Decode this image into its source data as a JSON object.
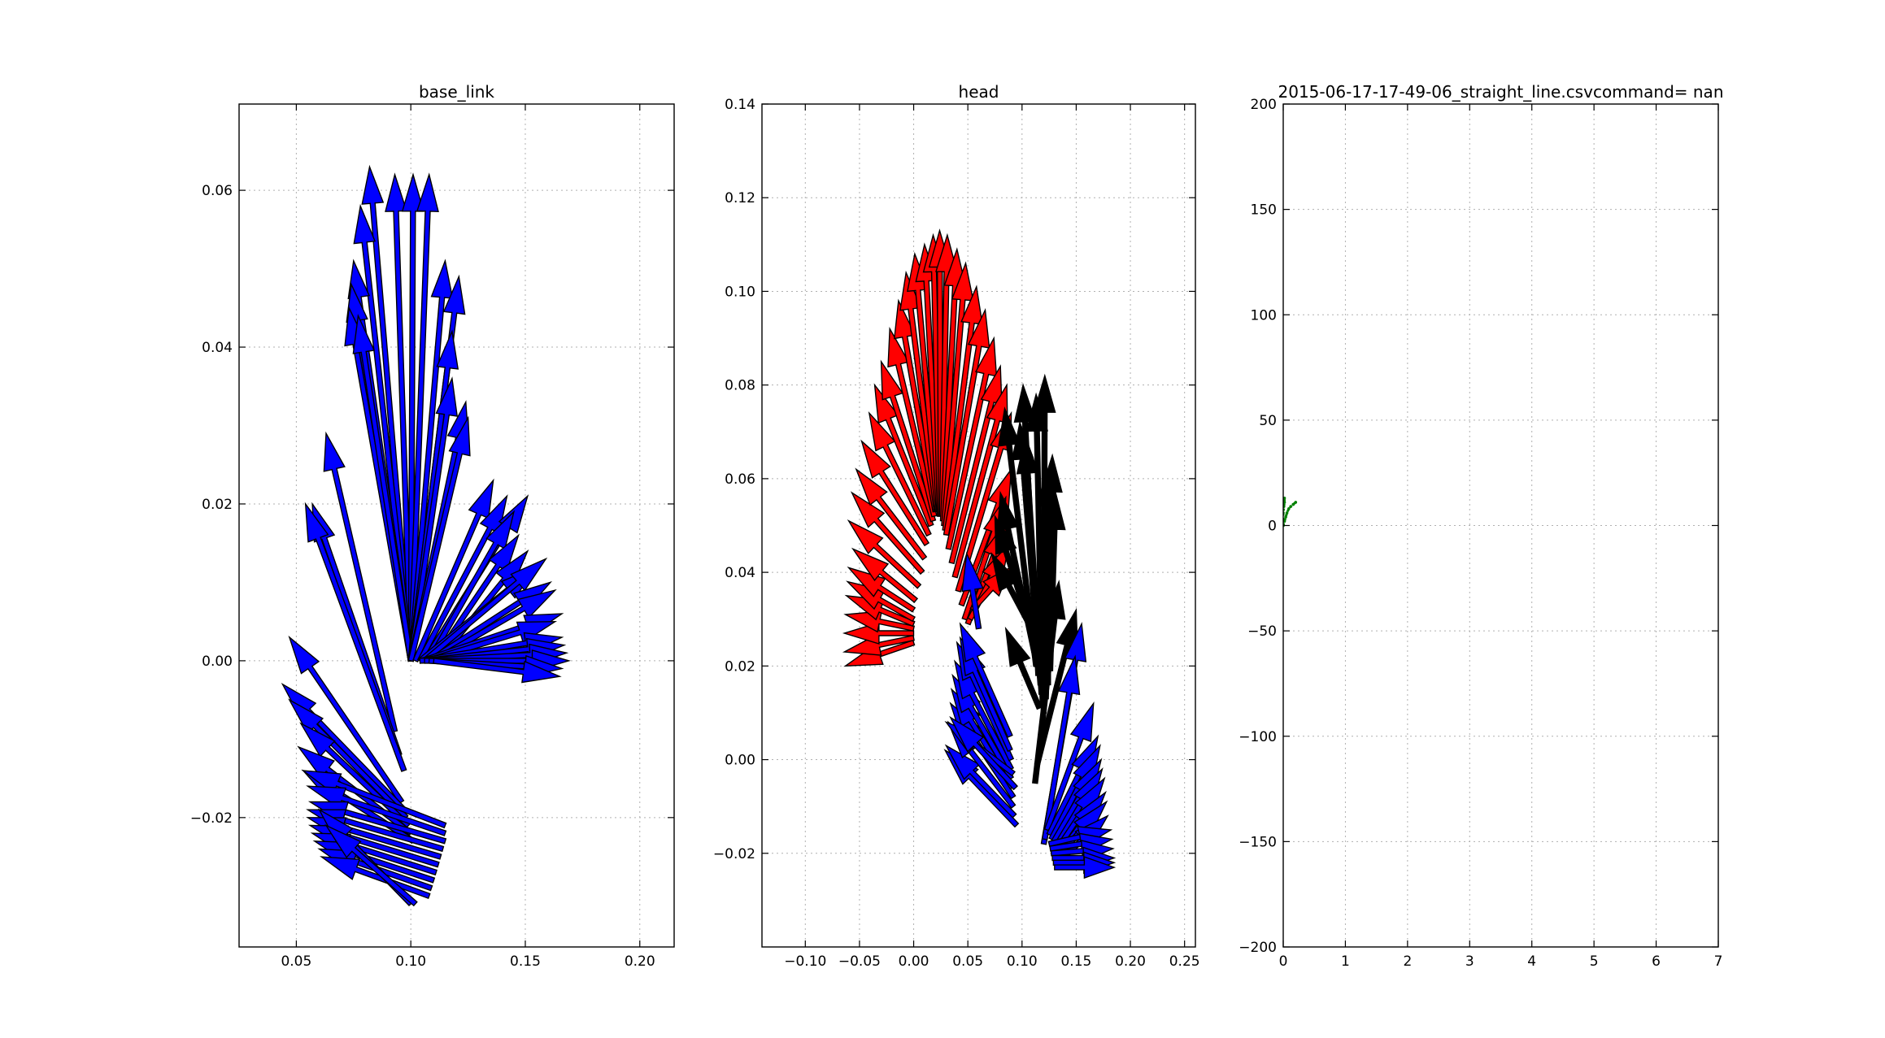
{
  "chart_data": [
    {
      "type": "scatter",
      "title": "base_link",
      "xlim": [
        0.025,
        0.215
      ],
      "ylim": [
        -0.0365,
        0.071
      ],
      "xticks": [
        "0.05",
        "0.10",
        "0.15",
        "0.20"
      ],
      "xtick_values": [
        0.05,
        0.1,
        0.15,
        0.2
      ],
      "yticks": [
        "−0.02",
        "0.00",
        "0.02",
        "0.04",
        "0.06"
      ],
      "ytick_values": [
        -0.02,
        0.0,
        0.02,
        0.04,
        0.06
      ],
      "grid": true,
      "series": [
        {
          "color": "#0000ff",
          "arrows": [
            [
              0.1,
              0.0,
              0.082,
              0.063
            ],
            [
              0.1,
              0.0,
              0.093,
              0.062
            ],
            [
              0.1,
              0.0,
              0.101,
              0.062
            ],
            [
              0.1,
              0.0,
              0.108,
              0.062
            ],
            [
              0.1,
              0.0,
              0.078,
              0.058
            ],
            [
              0.1,
              0.0,
              0.075,
              0.051
            ],
            [
              0.1,
              0.0,
              0.074,
              0.048
            ],
            [
              0.1,
              0.0,
              0.073,
              0.045
            ],
            [
              0.1,
              0.0,
              0.077,
              0.044
            ],
            [
              0.1,
              0.0,
              0.115,
              0.051
            ],
            [
              0.1,
              0.0,
              0.121,
              0.049
            ],
            [
              0.1,
              0.0,
              0.118,
              0.042
            ],
            [
              0.1,
              0.0,
              0.118,
              0.036
            ],
            [
              0.1,
              0.0,
              0.124,
              0.033
            ],
            [
              0.1,
              0.0,
              0.125,
              0.031
            ],
            [
              0.093,
              -0.009,
              0.063,
              0.029
            ],
            [
              0.095,
              -0.012,
              0.057,
              0.02
            ],
            [
              0.097,
              -0.014,
              0.054,
              0.02
            ],
            [
              0.102,
              0.0,
              0.136,
              0.023
            ],
            [
              0.104,
              0.0,
              0.142,
              0.021
            ],
            [
              0.106,
              0.0,
              0.151,
              0.021
            ],
            [
              0.108,
              0.0,
              0.145,
              0.019
            ],
            [
              0.11,
              0.0,
              0.147,
              0.016
            ],
            [
              0.112,
              0.0,
              0.151,
              0.014
            ],
            [
              0.104,
              0.0,
              0.155,
              0.012
            ],
            [
              0.106,
              0.0,
              0.159,
              0.013
            ],
            [
              0.108,
              0.0,
              0.161,
              0.01
            ],
            [
              0.11,
              0.0,
              0.163,
              0.009
            ],
            [
              0.105,
              0.0,
              0.166,
              0.006
            ],
            [
              0.107,
              0.0,
              0.163,
              0.005
            ],
            [
              0.104,
              0.0,
              0.166,
              0.003
            ],
            [
              0.106,
              0.0,
              0.167,
              0.002
            ],
            [
              0.104,
              0.0,
              0.168,
              0.001
            ],
            [
              0.106,
              0.0,
              0.169,
              0.0
            ],
            [
              0.108,
              0.0,
              0.166,
              -0.001
            ],
            [
              0.11,
              0.0,
              0.165,
              -0.002
            ],
            [
              0.096,
              -0.018,
              0.047,
              0.003
            ],
            [
              0.097,
              -0.019,
              0.044,
              -0.003
            ],
            [
              0.098,
              -0.02,
              0.047,
              -0.005
            ],
            [
              0.099,
              -0.021,
              0.052,
              -0.008
            ],
            [
              0.1,
              -0.022,
              0.051,
              -0.011
            ],
            [
              0.101,
              -0.023,
              0.053,
              -0.014
            ],
            [
              0.115,
              -0.021,
              0.053,
              -0.014
            ],
            [
              0.115,
              -0.022,
              0.055,
              -0.016
            ],
            [
              0.115,
              -0.023,
              0.056,
              -0.018
            ],
            [
              0.114,
              -0.024,
              0.055,
              -0.019
            ],
            [
              0.113,
              -0.025,
              0.055,
              -0.02
            ],
            [
              0.112,
              -0.026,
              0.056,
              -0.021
            ],
            [
              0.111,
              -0.027,
              0.057,
              -0.022
            ],
            [
              0.11,
              -0.028,
              0.058,
              -0.023
            ],
            [
              0.109,
              -0.029,
              0.06,
              -0.024
            ],
            [
              0.108,
              -0.03,
              0.061,
              -0.025
            ],
            [
              0.1,
              -0.031,
              0.06,
              -0.019
            ],
            [
              0.102,
              -0.031,
              0.063,
              -0.021
            ]
          ]
        }
      ]
    },
    {
      "type": "scatter",
      "title": "head",
      "xlim": [
        -0.14,
        0.26
      ],
      "ylim": [
        -0.04,
        0.14
      ],
      "xticks": [
        "−0.10",
        "−0.05",
        "0.00",
        "0.05",
        "0.10",
        "0.15",
        "0.20",
        "0.25"
      ],
      "xtick_values": [
        -0.1,
        -0.05,
        0.0,
        0.05,
        0.1,
        0.15,
        0.2,
        0.25
      ],
      "yticks": [
        "−0.02",
        "0.00",
        "0.02",
        "0.04",
        "0.06",
        "0.08",
        "0.10",
        "0.12",
        "0.14"
      ],
      "ytick_values": [
        -0.02,
        0.0,
        0.02,
        0.04,
        0.06,
        0.08,
        0.1,
        0.12,
        0.14
      ],
      "grid": true,
      "series": [
        {
          "color": "#ff0000",
          "arrows": [
            [
              0.0,
              0.025,
              -0.063,
              0.02
            ],
            [
              0.0,
              0.026,
              -0.064,
              0.023
            ],
            [
              0.0,
              0.027,
              -0.064,
              0.027
            ],
            [
              0.0,
              0.028,
              -0.063,
              0.031
            ],
            [
              0.0,
              0.029,
              -0.062,
              0.035
            ],
            [
              0.0,
              0.03,
              -0.061,
              0.038
            ],
            [
              0.0,
              0.032,
              -0.06,
              0.041
            ],
            [
              0.002,
              0.034,
              -0.056,
              0.045
            ],
            [
              0.005,
              0.037,
              -0.06,
              0.051
            ],
            [
              0.008,
              0.04,
              -0.057,
              0.057
            ],
            [
              0.01,
              0.043,
              -0.053,
              0.062
            ],
            [
              0.012,
              0.046,
              -0.048,
              0.068
            ],
            [
              0.014,
              0.048,
              -0.041,
              0.074
            ],
            [
              0.016,
              0.05,
              -0.036,
              0.08
            ],
            [
              0.018,
              0.051,
              -0.03,
              0.085
            ],
            [
              0.019,
              0.052,
              -0.022,
              0.092
            ],
            [
              0.02,
              0.053,
              -0.014,
              0.098
            ],
            [
              0.021,
              0.053,
              -0.007,
              0.104
            ],
            [
              0.022,
              0.053,
              0.001,
              0.108
            ],
            [
              0.023,
              0.053,
              0.01,
              0.11
            ],
            [
              0.024,
              0.052,
              0.018,
              0.112
            ],
            [
              0.025,
              0.052,
              0.024,
              0.113
            ],
            [
              0.026,
              0.052,
              0.031,
              0.112
            ],
            [
              0.027,
              0.051,
              0.04,
              0.109
            ],
            [
              0.028,
              0.05,
              0.048,
              0.106
            ],
            [
              0.029,
              0.049,
              0.058,
              0.101
            ],
            [
              0.03,
              0.048,
              0.066,
              0.096
            ],
            [
              0.032,
              0.045,
              0.074,
              0.09
            ],
            [
              0.035,
              0.042,
              0.08,
              0.084
            ],
            [
              0.038,
              0.039,
              0.086,
              0.08
            ],
            [
              0.041,
              0.036,
              0.09,
              0.074
            ],
            [
              0.044,
              0.033,
              0.09,
              0.062
            ],
            [
              0.047,
              0.03,
              0.085,
              0.056
            ],
            [
              0.05,
              0.029,
              0.086,
              0.051
            ],
            [
              0.052,
              0.03,
              0.088,
              0.046
            ],
            [
              0.054,
              0.032,
              0.089,
              0.041
            ]
          ]
        },
        {
          "color": "#000000",
          "arrows": [
            [
              0.113,
              0.02,
              0.084,
              0.075
            ],
            [
              0.115,
              0.018,
              0.101,
              0.08
            ],
            [
              0.117,
              0.016,
              0.098,
              0.072
            ],
            [
              0.118,
              0.014,
              0.103,
              0.069
            ],
            [
              0.119,
              0.012,
              0.113,
              0.078
            ],
            [
              0.12,
              0.01,
              0.121,
              0.082
            ],
            [
              0.122,
              0.013,
              0.128,
              0.065
            ],
            [
              0.124,
              0.016,
              0.124,
              0.062
            ],
            [
              0.126,
              0.019,
              0.131,
              0.057
            ],
            [
              0.114,
              0.02,
              0.08,
              0.057
            ],
            [
              0.116,
              0.022,
              0.075,
              0.052
            ],
            [
              0.118,
              0.024,
              0.072,
              0.044
            ],
            [
              0.114,
              -0.001,
              0.15,
              0.032
            ],
            [
              0.112,
              -0.005,
              0.134,
              0.038
            ],
            [
              0.116,
              0.011,
              0.085,
              0.028
            ]
          ]
        },
        {
          "color": "#0000ff",
          "arrows": [
            [
              0.06,
              0.028,
              0.049,
              0.044
            ],
            [
              0.095,
              -0.014,
              0.029,
              0.002
            ],
            [
              0.093,
              -0.012,
              0.03,
              0.003
            ],
            [
              0.092,
              -0.01,
              0.032,
              0.008
            ],
            [
              0.092,
              -0.008,
              0.034,
              0.012
            ],
            [
              0.091,
              -0.006,
              0.035,
              0.015
            ],
            [
              0.09,
              -0.004,
              0.036,
              0.018
            ],
            [
              0.09,
              -0.002,
              0.038,
              0.021
            ],
            [
              0.09,
              0.0,
              0.04,
              0.025
            ],
            [
              0.089,
              0.002,
              0.043,
              0.026
            ],
            [
              0.089,
              0.005,
              0.043,
              0.029
            ],
            [
              0.092,
              -0.003,
              0.03,
              0.008
            ],
            [
              0.094,
              -0.006,
              0.034,
              0.009
            ],
            [
              0.12,
              -0.018,
              0.155,
              0.029
            ],
            [
              0.121,
              -0.017,
              0.149,
              0.022
            ],
            [
              0.123,
              -0.015,
              0.166,
              0.012
            ],
            [
              0.125,
              -0.016,
              0.17,
              0.005
            ],
            [
              0.127,
              -0.017,
              0.172,
              0.003
            ],
            [
              0.128,
              -0.018,
              0.173,
              0.0
            ],
            [
              0.13,
              -0.019,
              0.174,
              -0.002
            ],
            [
              0.13,
              -0.02,
              0.176,
              -0.004
            ],
            [
              0.131,
              -0.021,
              0.177,
              -0.007
            ],
            [
              0.132,
              -0.021,
              0.178,
              -0.009
            ],
            [
              0.133,
              -0.022,
              0.179,
              -0.012
            ],
            [
              0.125,
              -0.018,
              0.182,
              -0.015
            ],
            [
              0.126,
              -0.019,
              0.183,
              -0.017
            ],
            [
              0.127,
              -0.02,
              0.184,
              -0.019
            ],
            [
              0.128,
              -0.021,
              0.185,
              -0.021
            ],
            [
              0.129,
              -0.022,
              0.185,
              -0.022
            ],
            [
              0.13,
              -0.023,
              0.185,
              -0.023
            ]
          ]
        }
      ]
    },
    {
      "type": "scatter",
      "title": "2015-06-17-17-49-06_straight_line.csvcommand= nan",
      "xlim": [
        0,
        7
      ],
      "ylim": [
        -200,
        200
      ],
      "xticks": [
        "0",
        "1",
        "2",
        "3",
        "4",
        "5",
        "6",
        "7"
      ],
      "xtick_values": [
        0,
        1,
        2,
        3,
        4,
        5,
        6,
        7
      ],
      "yticks": [
        "−200",
        "−150",
        "−100",
        "−50",
        "0",
        "50",
        "100",
        "150",
        "200"
      ],
      "ytick_values": [
        -200,
        -150,
        -100,
        -50,
        0,
        50,
        100,
        150,
        200
      ],
      "grid": true,
      "series": [
        {
          "color": "#008000",
          "marker": "dotted-line",
          "points": [
            [
              0.0,
              0.0
            ],
            [
              0.02,
              2.0
            ],
            [
              0.04,
              4.0
            ],
            [
              0.06,
              6.0
            ],
            [
              0.09,
              8.0
            ],
            [
              0.12,
              9.0
            ],
            [
              0.16,
              10.0
            ],
            [
              0.2,
              11.0
            ]
          ]
        },
        {
          "color": "#008000",
          "marker": "dotted-line",
          "points": [
            [
              0.0,
              0.0
            ],
            [
              0.0,
              3.0
            ],
            [
              0.0,
              6.0
            ],
            [
              0.01,
              9.0
            ],
            [
              0.02,
              11.0
            ],
            [
              0.02,
              13.0
            ]
          ]
        }
      ]
    }
  ]
}
